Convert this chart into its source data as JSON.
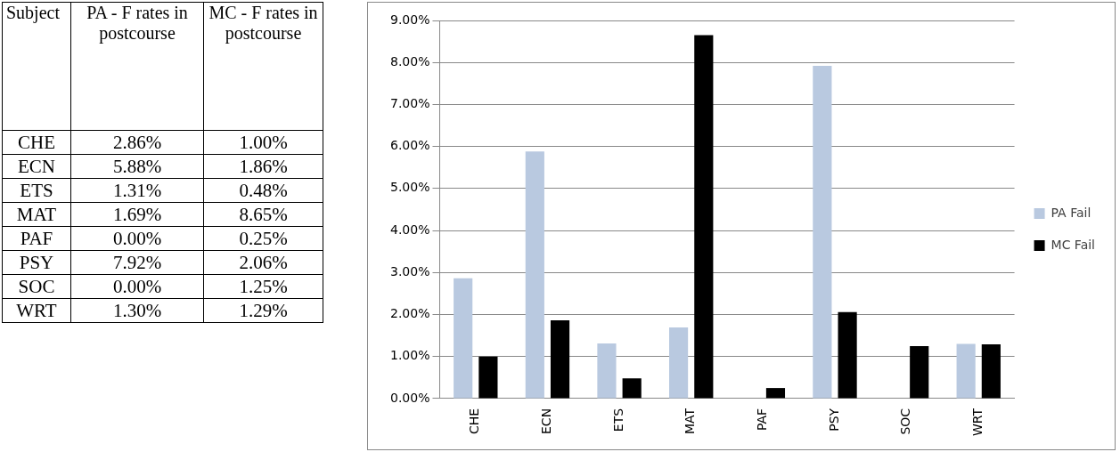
{
  "chart_data": [
    {
      "type": "other",
      "annotations": [
        "Subject",
        "PA - F rates in postcourse",
        "MC - F rates in postcourse",
        "CHE",
        "2.86%",
        "1.00%",
        "ECN",
        "5.88%",
        "1.86%",
        "ETS",
        "1.31%",
        "0.48%",
        "MAT",
        "1.69%",
        "8.65%",
        "PAF",
        "0.00%",
        "0.25%",
        "PSY",
        "7.92%",
        "2.06%",
        "SOC",
        "0.00%",
        "1.25%",
        "WRT",
        "1.30%",
        "1.29%"
      ]
    },
    {
      "type": "bar",
      "categories": [
        "CHE",
        "ECN",
        "ETS",
        "MAT",
        "PAF",
        "PSY",
        "SOC",
        "WRT"
      ],
      "series": [
        {
          "name": "PA Fail",
          "color": "#b9c9e0",
          "values": [
            2.86,
            5.88,
            1.31,
            1.69,
            0.0,
            7.92,
            0.0,
            1.3
          ]
        },
        {
          "name": "MC Fail",
          "color": "#000000",
          "values": [
            1.0,
            1.86,
            0.48,
            8.65,
            0.25,
            2.06,
            1.25,
            1.29
          ]
        }
      ],
      "ylim": [
        0,
        9
      ],
      "yticks": [
        {
          "value": 0,
          "label": "0.00%"
        },
        {
          "value": 1,
          "label": "1.00%"
        },
        {
          "value": 2,
          "label": "2.00%"
        },
        {
          "value": 3,
          "label": "3.00%"
        },
        {
          "value": 4,
          "label": "4.00%"
        },
        {
          "value": 5,
          "label": "5.00%"
        },
        {
          "value": 6,
          "label": "6.00%"
        },
        {
          "value": 7,
          "label": "7.00%"
        },
        {
          "value": 8,
          "label": "8.00%"
        },
        {
          "value": 9,
          "label": "9.00%"
        }
      ],
      "grid": "y",
      "legend": "right"
    }
  ]
}
